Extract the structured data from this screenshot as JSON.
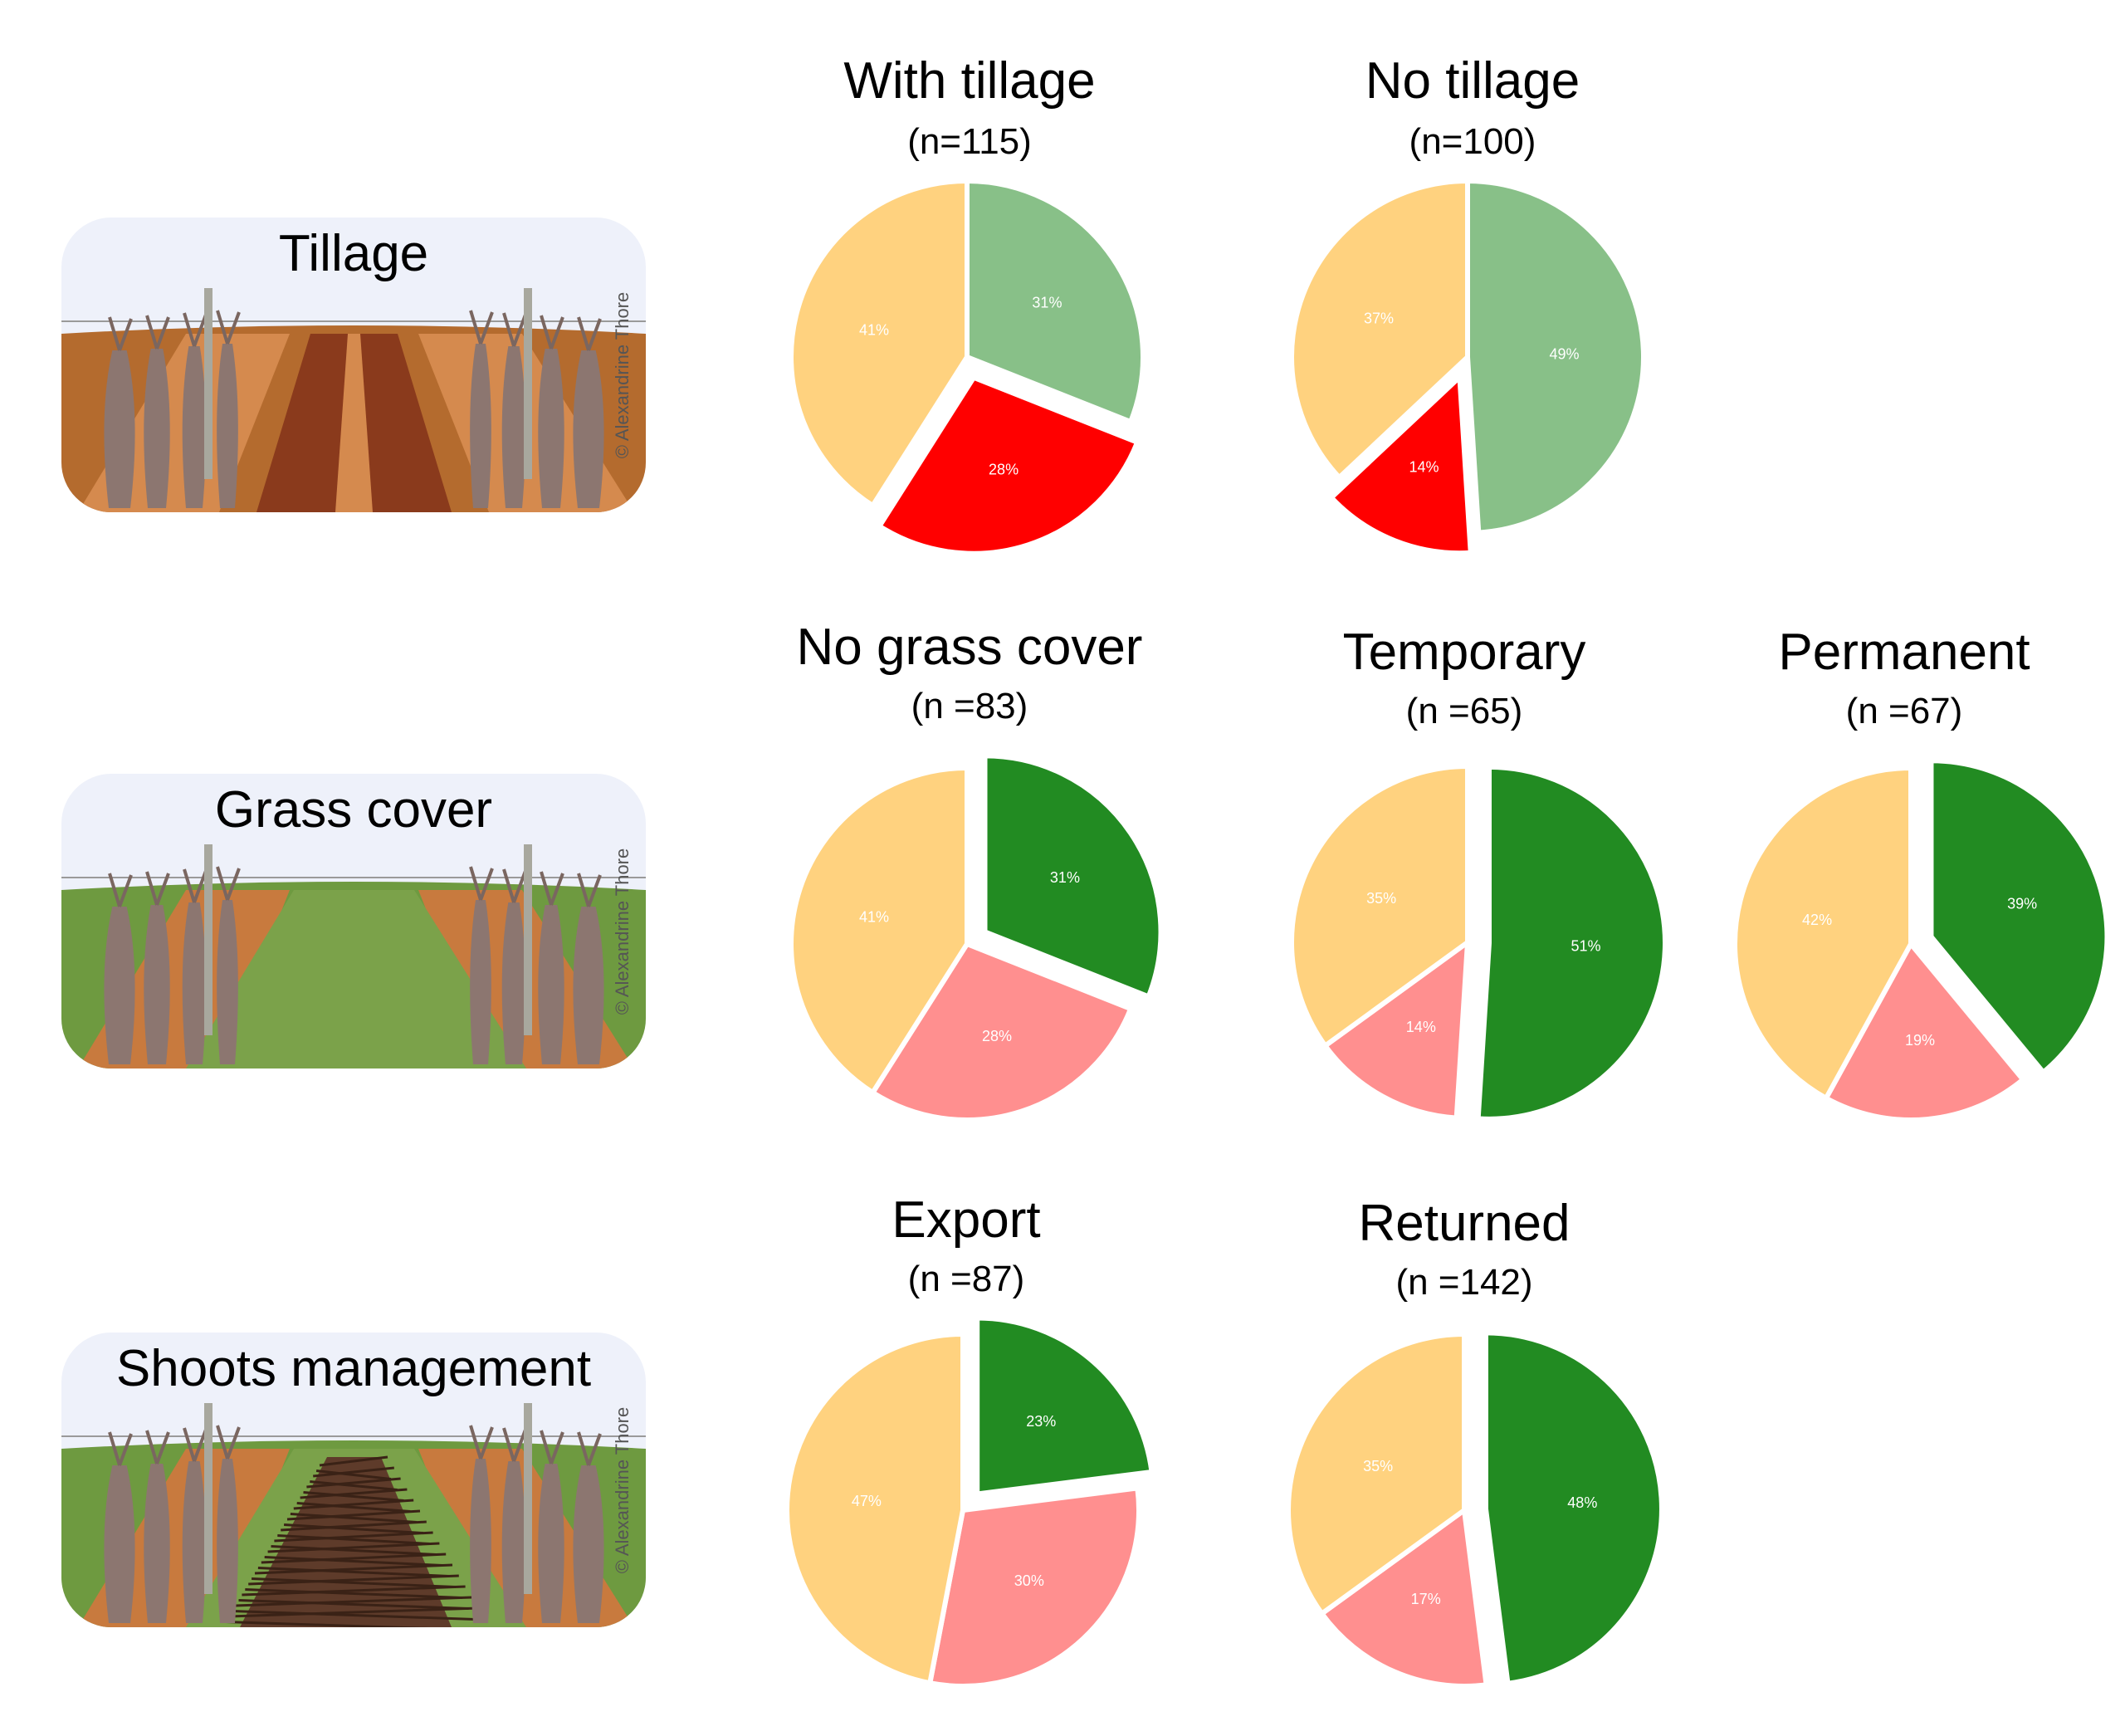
{
  "colors": {
    "moderate": "#FFD27F",
    "low_bright": "#88C088",
    "low_dark": "#228B22",
    "high_bright": "#FF0000",
    "high_light": "#FF8F8F"
  },
  "panels": [
    {
      "title": "Tillage",
      "credit": "© Alexandrine Thore",
      "ground": "tillage"
    },
    {
      "title": "Grass cover",
      "credit": "© Alexandrine Thore",
      "ground": "grass"
    },
    {
      "title": "Shoots management",
      "credit": "© Alexandrine Thore",
      "ground": "shoots"
    }
  ],
  "chart_data": [
    {
      "type": "pie",
      "title": "With tillage",
      "subtitle": "(n=115)",
      "slices": [
        {
          "label": "31%",
          "value": 31,
          "color": "#88C088"
        },
        {
          "label": "28%",
          "value": 28,
          "color": "#FF0000",
          "exploded": true
        },
        {
          "label": "41%",
          "value": 41,
          "color": "#FFD27F"
        }
      ]
    },
    {
      "type": "pie",
      "title": "No tillage",
      "subtitle": "(n=100)",
      "slices": [
        {
          "label": "49%",
          "value": 49,
          "color": "#88C088"
        },
        {
          "label": "14%",
          "value": 14,
          "color": "#FF0000",
          "exploded": true
        },
        {
          "label": "37%",
          "value": 37,
          "color": "#FFD27F"
        }
      ]
    },
    {
      "type": "pie",
      "title": "No grass cover",
      "subtitle": "(n =83)",
      "slices": [
        {
          "label": "31%",
          "value": 31,
          "color": "#228B22",
          "exploded": true
        },
        {
          "label": "28%",
          "value": 28,
          "color": "#FF8F8F"
        },
        {
          "label": "41%",
          "value": 41,
          "color": "#FFD27F"
        }
      ]
    },
    {
      "type": "pie",
      "title": "Temporary",
      "subtitle": "(n =65)",
      "slices": [
        {
          "label": "51%",
          "value": 51,
          "color": "#228B22",
          "exploded": true
        },
        {
          "label": "14%",
          "value": 14,
          "color": "#FF8F8F"
        },
        {
          "label": "35%",
          "value": 35,
          "color": "#FFD27F"
        }
      ]
    },
    {
      "type": "pie",
      "title": "Permanent",
      "subtitle": "(n =67)",
      "slices": [
        {
          "label": "39%",
          "value": 39,
          "color": "#228B22",
          "exploded": true
        },
        {
          "label": "19%",
          "value": 19,
          "color": "#FF8F8F"
        },
        {
          "label": "42%",
          "value": 42,
          "color": "#FFD27F"
        }
      ]
    },
    {
      "type": "pie",
      "title": "Export",
      "subtitle": "(n =87)",
      "slices": [
        {
          "label": "23%",
          "value": 23,
          "color": "#228B22",
          "exploded": true
        },
        {
          "label": "30%",
          "value": 30,
          "color": "#FF8F8F"
        },
        {
          "label": "47%",
          "value": 47,
          "color": "#FFD27F"
        }
      ]
    },
    {
      "type": "pie",
      "title": "Returned",
      "subtitle": "(n =142)",
      "slices": [
        {
          "label": "48%",
          "value": 48,
          "color": "#228B22",
          "exploded": true
        },
        {
          "label": "17%",
          "value": 17,
          "color": "#FF8F8F"
        },
        {
          "label": "35%",
          "value": 35,
          "color": "#FFD27F"
        }
      ]
    }
  ]
}
